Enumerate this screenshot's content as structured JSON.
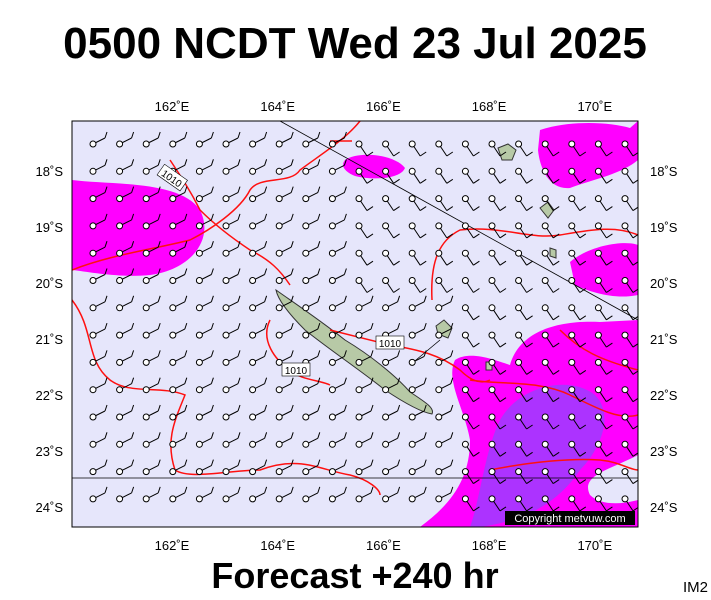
{
  "header": {
    "title": "0500 NCDT Wed 23 Jul 2025"
  },
  "map": {
    "lon_labels": [
      "162˚E",
      "164˚E",
      "166˚E",
      "168˚E",
      "170˚E"
    ],
    "lat_labels": [
      "18˚S",
      "19˚S",
      "20˚S",
      "21˚S",
      "22˚S",
      "23˚S",
      "24˚S"
    ],
    "isobar_labels": [
      "1010",
      "1010",
      "1010"
    ],
    "copyright": "Copyright metvuw.com"
  },
  "footer": {
    "forecast": "Forecast +240 hr",
    "code": "IM2"
  }
}
